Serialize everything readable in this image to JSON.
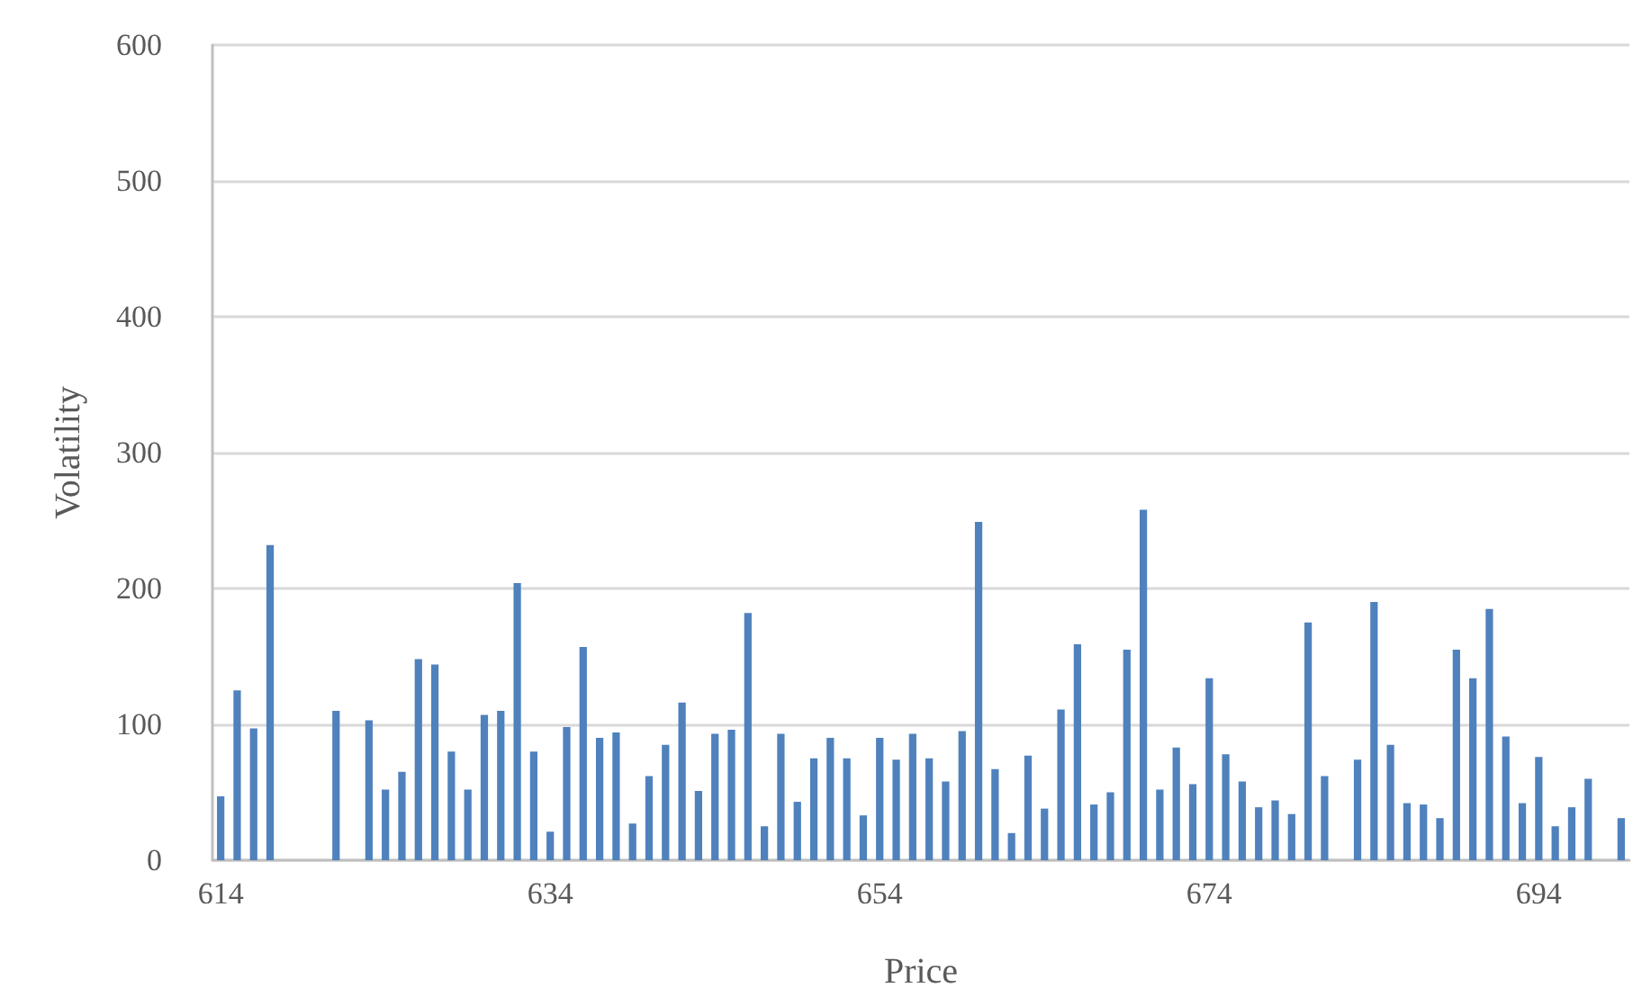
{
  "chart_data": {
    "type": "bar",
    "xlabel": "Price",
    "ylabel": "Volatility",
    "categories": [
      "614",
      null,
      null,
      null,
      null,
      null,
      null,
      null,
      null,
      null,
      null,
      null,
      null,
      null,
      null,
      null,
      null,
      null,
      null,
      null,
      "634",
      null,
      null,
      null,
      null,
      null,
      null,
      null,
      null,
      null,
      null,
      null,
      null,
      null,
      null,
      null,
      null,
      null,
      null,
      null,
      "654",
      null,
      null,
      null,
      null,
      null,
      null,
      null,
      null,
      null,
      null,
      null,
      null,
      null,
      null,
      null,
      null,
      null,
      null,
      null,
      "674",
      null,
      null,
      null,
      null,
      null,
      null,
      null,
      null,
      null,
      null,
      null,
      null,
      null,
      null,
      null,
      null,
      null,
      null,
      null,
      "694",
      null,
      null,
      null,
      null,
      null
    ],
    "values": [
      47,
      125,
      97,
      232,
      null,
      null,
      null,
      110,
      null,
      103,
      52,
      65,
      148,
      144,
      80,
      52,
      107,
      110,
      204,
      80,
      21,
      98,
      157,
      90,
      94,
      27,
      62,
      85,
      116,
      51,
      93,
      96,
      182,
      25,
      93,
      43,
      75,
      90,
      75,
      33,
      90,
      74,
      93,
      75,
      58,
      95,
      249,
      67,
      20,
      77,
      38,
      111,
      159,
      41,
      50,
      155,
      258,
      52,
      83,
      56,
      134,
      78,
      58,
      39,
      44,
      34,
      175,
      62,
      null,
      74,
      190,
      85,
      42,
      41,
      31,
      155,
      134,
      185,
      91,
      42,
      76,
      25,
      39,
      60,
      null,
      31
    ],
    "color": "#4f81bd",
    "ylim": [
      0,
      600
    ],
    "yticks": [
      0,
      100,
      200,
      300,
      400,
      500,
      600
    ],
    "grid": "y"
  }
}
